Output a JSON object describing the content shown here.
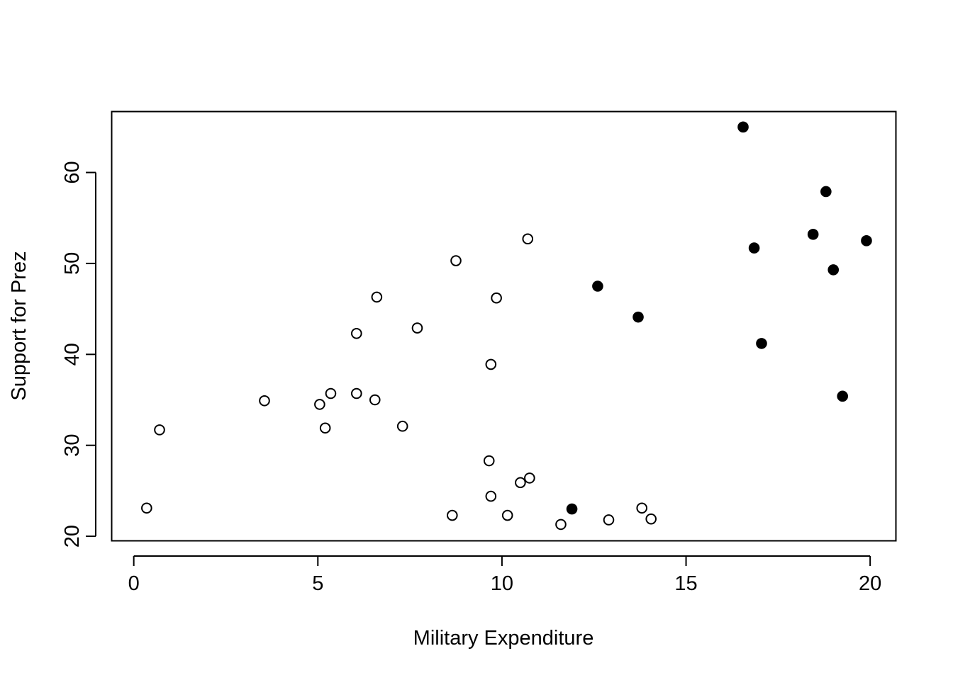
{
  "chart_data": {
    "type": "scatter",
    "title": "",
    "xlabel": "Military Expenditure",
    "ylabel": "Support for Prez",
    "xlim": [
      -0.6,
      20.7
    ],
    "ylim": [
      19.5,
      66.7
    ],
    "xticks": [
      0,
      5,
      10,
      15,
      20
    ],
    "yticks": [
      20,
      30,
      40,
      50,
      60
    ],
    "grid": false,
    "legend": "none",
    "series": [
      {
        "marker": "open-circle",
        "color": "#000000",
        "points": [
          [
            0.35,
            23.1
          ],
          [
            0.7,
            31.7
          ],
          [
            3.55,
            34.9
          ],
          [
            5.05,
            34.5
          ],
          [
            5.2,
            31.9
          ],
          [
            5.35,
            35.7
          ],
          [
            6.05,
            42.3
          ],
          [
            6.05,
            35.7
          ],
          [
            6.55,
            35.0
          ],
          [
            6.6,
            46.3
          ],
          [
            7.3,
            32.1
          ],
          [
            7.7,
            42.9
          ],
          [
            8.65,
            22.3
          ],
          [
            8.75,
            50.3
          ],
          [
            9.65,
            28.3
          ],
          [
            9.7,
            38.9
          ],
          [
            9.7,
            24.4
          ],
          [
            9.85,
            46.2
          ],
          [
            10.15,
            22.3
          ],
          [
            10.5,
            25.9
          ],
          [
            10.7,
            52.7
          ],
          [
            10.75,
            26.4
          ],
          [
            11.6,
            21.3
          ],
          [
            12.9,
            21.8
          ],
          [
            13.8,
            23.1
          ],
          [
            14.05,
            21.9
          ]
        ]
      },
      {
        "marker": "filled-circle",
        "color": "#000000",
        "points": [
          [
            11.9,
            23.0
          ],
          [
            12.6,
            47.5
          ],
          [
            13.7,
            44.1
          ],
          [
            16.55,
            65.0
          ],
          [
            16.85,
            51.7
          ],
          [
            17.05,
            41.2
          ],
          [
            18.45,
            53.2
          ],
          [
            18.8,
            57.9
          ],
          [
            19.0,
            49.3
          ],
          [
            19.25,
            35.4
          ],
          [
            19.9,
            52.5
          ]
        ]
      }
    ]
  }
}
